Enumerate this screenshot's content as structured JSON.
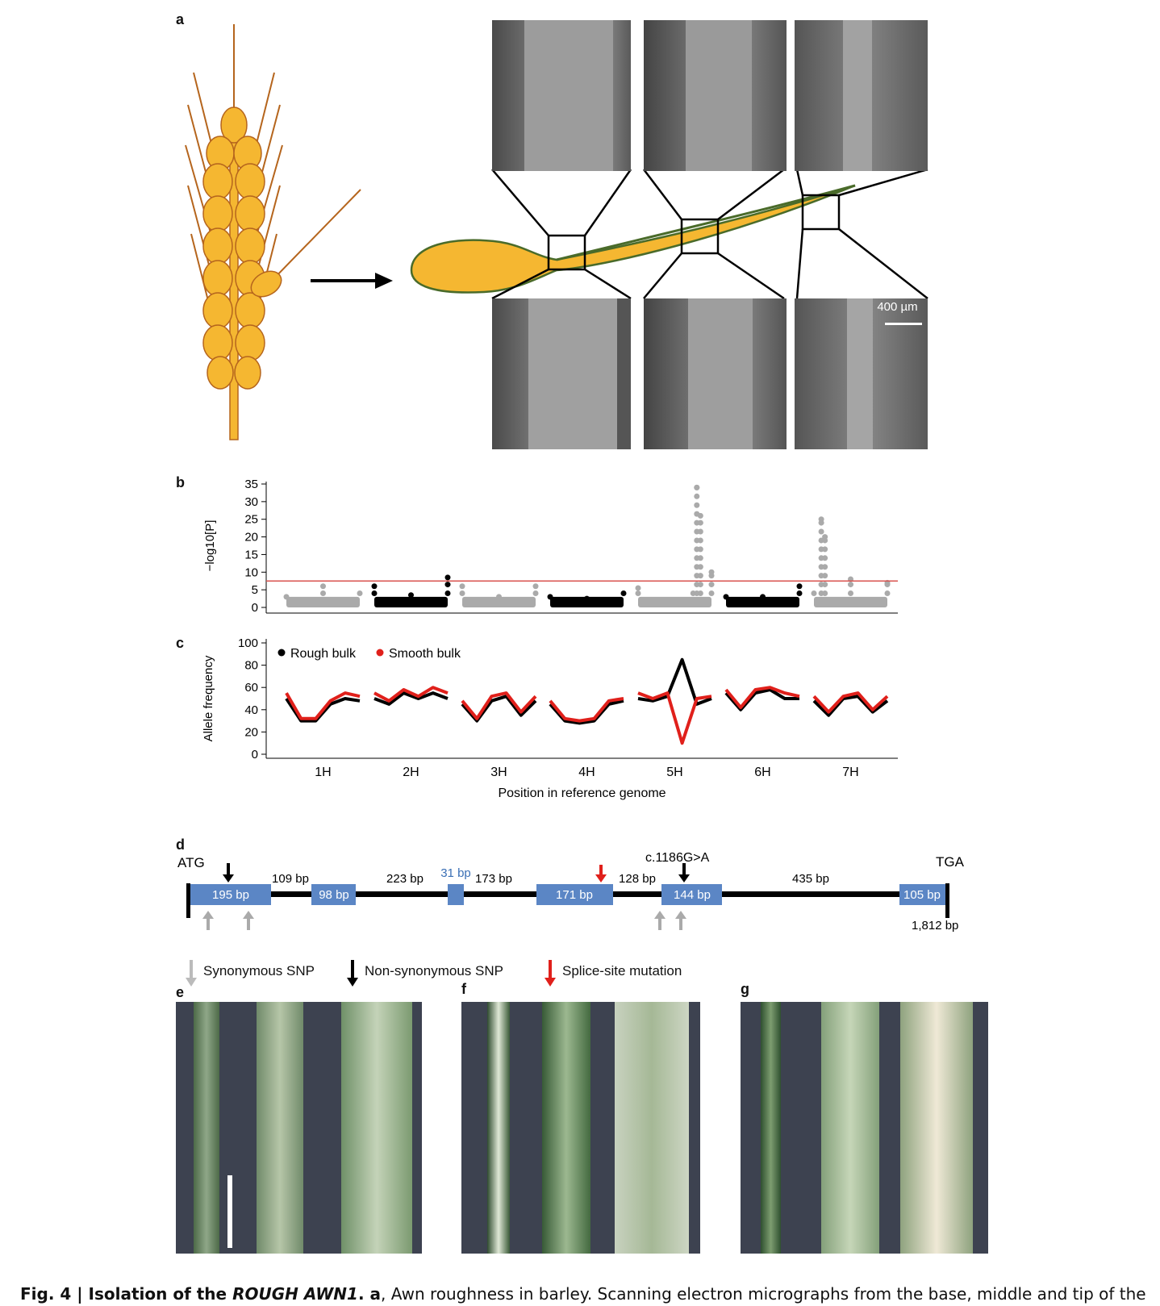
{
  "panels": {
    "a": "a",
    "b": "b",
    "c": "c",
    "d": "d",
    "e": "e",
    "f": "f",
    "g": "g"
  },
  "panel_a": {
    "scale_bar_label": "400 µm",
    "colors": {
      "grain": "#f5b731",
      "grain_outline": "#b5651d",
      "awn": "#4a6b2a",
      "sem_gray": "#8a8a8a"
    }
  },
  "chart_data": [
    {
      "type": "scatter",
      "panel": "b",
      "ylabel": "−log10[P]",
      "ylim": [
        0,
        35
      ],
      "yticks": [
        0,
        5,
        10,
        15,
        20,
        25,
        30,
        35
      ],
      "threshold": 7.5,
      "threshold_color": "#d9534f",
      "chromosomes": [
        "1H",
        "2H",
        "3H",
        "4H",
        "5H",
        "6H",
        "7H"
      ],
      "chromosome_colors": [
        "#aaaaaa",
        "#000000",
        "#aaaaaa",
        "#000000",
        "#aaaaaa",
        "#000000",
        "#aaaaaa"
      ],
      "series": [
        {
          "chromosome": "1H",
          "x": [
            0.0,
            0.5,
            1.0
          ],
          "y": [
            3,
            6,
            4
          ]
        },
        {
          "chromosome": "2H",
          "x": [
            0.0,
            0.5,
            1.0
          ],
          "y": [
            6,
            3.5,
            8.5
          ]
        },
        {
          "chromosome": "3H",
          "x": [
            0.0,
            0.5,
            1.0
          ],
          "y": [
            6,
            3,
            6
          ]
        },
        {
          "chromosome": "4H",
          "x": [
            0.0,
            0.5,
            1.0
          ],
          "y": [
            3,
            2.5,
            4
          ]
        },
        {
          "chromosome": "5H",
          "x": [
            0.0,
            0.75,
            0.8,
            0.85,
            1.0
          ],
          "y": [
            5.5,
            4,
            34,
            26,
            10
          ]
        },
        {
          "chromosome": "6H",
          "x": [
            0.0,
            0.5,
            1.0
          ],
          "y": [
            3,
            3,
            6
          ]
        },
        {
          "chromosome": "7H",
          "x": [
            0.0,
            0.1,
            0.15,
            0.5,
            1.0
          ],
          "y": [
            4,
            25,
            20,
            8,
            7
          ]
        }
      ]
    },
    {
      "type": "line",
      "panel": "c",
      "ylabel": "Allele frequency",
      "xlabel": "Position in reference genome",
      "ylim": [
        0,
        100
      ],
      "yticks": [
        0,
        20,
        40,
        60,
        80,
        100
      ],
      "categories": [
        "1H",
        "2H",
        "3H",
        "4H",
        "5H",
        "6H",
        "7H"
      ],
      "legend": [
        {
          "name": "Rough bulk",
          "color": "#000000"
        },
        {
          "name": "Smooth bulk",
          "color": "#e0201b"
        }
      ],
      "series": [
        {
          "name": "Rough bulk",
          "color": "#000000",
          "values": [
            [
              50,
              30,
              30,
              45,
              50,
              48
            ],
            [
              50,
              45,
              55,
              50,
              55,
              50
            ],
            [
              45,
              30,
              48,
              52,
              35,
              48
            ],
            [
              45,
              30,
              28,
              30,
              45,
              48
            ],
            [
              50,
              48,
              52,
              85,
              45,
              50
            ],
            [
              55,
              40,
              55,
              58,
              50,
              50
            ],
            [
              48,
              35,
              50,
              52,
              38,
              48
            ]
          ]
        },
        {
          "name": "Smooth bulk",
          "color": "#e0201b",
          "values": [
            [
              55,
              32,
              32,
              48,
              55,
              52
            ],
            [
              55,
              48,
              58,
              52,
              60,
              55
            ],
            [
              48,
              32,
              52,
              55,
              38,
              52
            ],
            [
              48,
              32,
              30,
              32,
              48,
              50
            ],
            [
              55,
              50,
              55,
              10,
              50,
              52
            ],
            [
              58,
              42,
              58,
              60,
              55,
              52
            ],
            [
              52,
              38,
              52,
              55,
              40,
              52
            ]
          ]
        }
      ]
    }
  ],
  "panel_d": {
    "start": "ATG",
    "stop": "TGA",
    "total": "1,812 bp",
    "mutation": "c.1186G>A",
    "exons": [
      "195 bp",
      "98 bp",
      "31 bp",
      "171 bp",
      "144 bp",
      "105 bp"
    ],
    "introns": [
      "109 bp",
      "223 bp",
      "173 bp",
      "128 bp",
      "435 bp"
    ],
    "exon_color": "#5b86c5",
    "legend": [
      {
        "label": "Synonymous SNP",
        "color": "#bbbbbb"
      },
      {
        "label": "Non-synonymous SNP",
        "color": "#000000"
      },
      {
        "label": "Splice-site mutation",
        "color": "#e0201b"
      }
    ]
  },
  "caption": {
    "fig": "Fig. 4 | Isolation of the ",
    "gene": "ROUGH AWN1",
    "dot": ". ",
    "a": "a",
    "text": ", Awn roughness in barley. Scanning electron micrographs from the base, middle and tip of the awn in the rough-"
  }
}
